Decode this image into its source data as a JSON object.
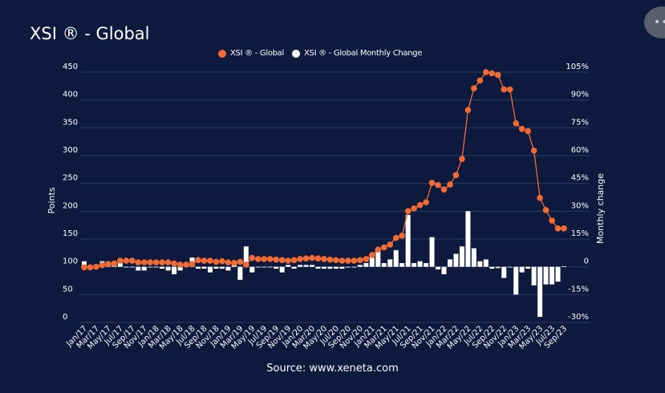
{
  "chart_data": {
    "type": "bar+line",
    "title": "XSI ® - Global",
    "source": "Source: www.xeneta.com",
    "legend_position": "top-center",
    "colors": {
      "line": "#f26b35",
      "bars": "#ffffff",
      "grid": "#2c3a63",
      "background": "#0d1a3d"
    },
    "xlabel": "",
    "ylabel": "Points",
    "y2label": "Monthly change",
    "ylim": [
      0,
      450
    ],
    "y2lim": [
      -30,
      105
    ],
    "yticks": [
      "0",
      "50",
      "100",
      "150",
      "200",
      "250",
      "300",
      "350",
      "400",
      "450"
    ],
    "y2ticks": [
      "-30%",
      "-15%",
      "0",
      "15%",
      "30%",
      "45%",
      "60%",
      "75%",
      "90%",
      "105%"
    ],
    "xtick_labels": [
      "Jan/17",
      "Mar/17",
      "May/17",
      "Jul/17",
      "Sep/17",
      "Nov/17",
      "Jan/18",
      "Mar/18",
      "May/18",
      "Jul/18",
      "Sep/18",
      "Nov/18",
      "Jan/19",
      "Mar/19",
      "May/19",
      "Jul/19",
      "Sep/19",
      "Nov/19",
      "Jan/20",
      "Mar/20",
      "May/20",
      "Jul/20",
      "Sep/20",
      "Nov/20",
      "Jan/21",
      "Mar/21",
      "May/21",
      "Jul/21",
      "Sep/21",
      "Nov/21",
      "Jan/22",
      "Mar/22",
      "May/22",
      "Jul/22",
      "Sep/22",
      "Nov/22",
      "Jan/23",
      "Mar/23",
      "May/23",
      "Jul/23",
      "Sep/23"
    ],
    "series": [
      {
        "name": "XSI ® - Global",
        "type": "line",
        "axis": "left",
        "values": [
          99,
          99,
          100,
          103,
          105,
          106,
          111,
          111,
          111,
          108,
          108,
          108,
          108,
          108,
          108,
          106,
          104,
          104,
          105,
          112,
          111,
          111,
          109,
          110,
          108,
          107,
          109,
          104,
          116,
          114,
          114,
          114,
          113,
          112,
          111,
          112,
          114,
          115,
          116,
          115,
          114,
          113,
          112,
          111,
          111,
          111,
          112,
          114,
          121,
          131,
          135,
          140,
          152,
          156,
          200,
          205,
          211,
          216,
          251,
          247,
          239,
          248,
          265,
          294,
          382,
          421,
          435,
          450,
          448,
          445,
          419,
          419,
          358,
          348,
          344,
          309,
          224,
          202,
          183,
          169,
          169
        ]
      },
      {
        "name": "XSI ® - Global Monthly Change",
        "type": "bar",
        "axis": "right",
        "values": [
          3,
          -1,
          1,
          3,
          2,
          1,
          4,
          0,
          0,
          -2,
          -2,
          0,
          0,
          -1,
          -2,
          -4,
          -2,
          1,
          5,
          -1,
          -1,
          -3,
          -1,
          -1,
          -2,
          1,
          -7,
          11,
          -3,
          0,
          0,
          0,
          -1,
          -3,
          1,
          -1,
          1,
          1,
          1,
          -1,
          -1,
          -1,
          -1,
          -1,
          0,
          0,
          1,
          2,
          5,
          8.6,
          2,
          4,
          9,
          2,
          28,
          2,
          3,
          2,
          16,
          -1.4,
          -4,
          4,
          7,
          11,
          30,
          10,
          3,
          4,
          -1,
          -0.7,
          -6,
          -0.2,
          -15,
          -3,
          -1,
          -10,
          -27,
          -9.5,
          -9.5,
          -8,
          0.2
        ]
      }
    ]
  },
  "ui": {
    "more_button": "•••"
  }
}
